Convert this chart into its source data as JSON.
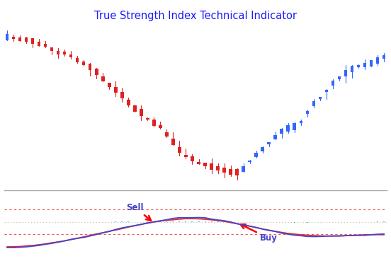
{
  "title": "True Strength Index Technical Indicator",
  "title_color": "#1a1aff",
  "title_fontsize": 10.5,
  "bg_color": "#ffffff",
  "n_candles": 60,
  "separator_color": "#aaaaaa",
  "candle_blue": "#3366ff",
  "candle_red": "#dd2222",
  "tsi_blue": "#4444cc",
  "tsi_red": "#ee2222",
  "tsi_hist_color": "#00bbaa",
  "tsi_upper": 0.22,
  "tsi_lower": -0.22,
  "zero_line_color": "#888888",
  "ref_line_color": "#ee4444"
}
